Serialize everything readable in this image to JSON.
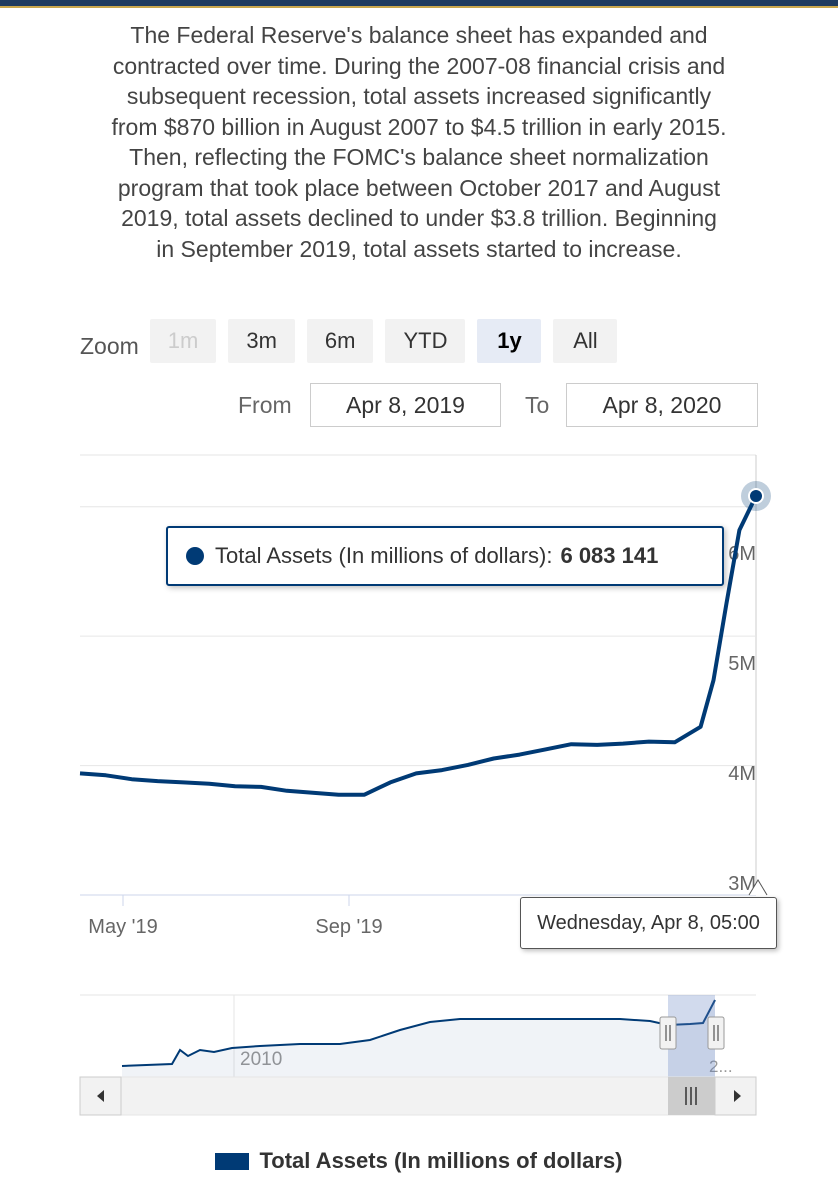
{
  "description": "The Federal Reserve's balance sheet has expanded and contracted over time. During the 2007-08 financial crisis and subsequent recession, total assets increased significantly from $870 billion in August 2007 to $4.5 trillion in early 2015. Then, reflecting the FOMC's balance sheet normalization program that took place between October 2017 and August 2019, total assets declined to under $3.8 trillion. Beginning in September 2019, total assets started to increase.",
  "zoom": {
    "label": "Zoom",
    "buttons": [
      {
        "label": "1m",
        "state": "disabled"
      },
      {
        "label": "3m",
        "state": "normal"
      },
      {
        "label": "6m",
        "state": "normal"
      },
      {
        "label": "YTD",
        "state": "normal"
      },
      {
        "label": "1y",
        "state": "active"
      },
      {
        "label": "All",
        "state": "normal"
      }
    ]
  },
  "range": {
    "from_label": "From",
    "from_value": "Apr 8, 2019",
    "to_label": "To",
    "to_value": "Apr 8, 2020"
  },
  "tooltip": {
    "series_label": "Total Assets (In millions of dollars):",
    "value": "6 083 141",
    "date": "Wednesday, Apr 8, 05:00"
  },
  "navigator": {
    "tick_labels": [
      "2010",
      "2..."
    ]
  },
  "colors": {
    "series": "#003a75",
    "grid": "#e6e6e6",
    "tooltip_border": "#003a75"
  },
  "chart_data": {
    "type": "line",
    "title": "",
    "xlabel": "",
    "ylabel": "",
    "x_ticks": [
      "May '19",
      "Sep '19"
    ],
    "y_ticks": [
      "3M",
      "4M",
      "5M",
      "6M"
    ],
    "ylim": [
      3000000,
      6400000
    ],
    "xlim": [
      "2019-04-08",
      "2020-04-08"
    ],
    "grid": true,
    "legend_position": "bottom",
    "series": [
      {
        "name": "Total Assets (In millions of dollars)",
        "x": [
          "2019-04-08",
          "2019-04-22",
          "2019-05-06",
          "2019-05-20",
          "2019-06-03",
          "2019-06-17",
          "2019-07-01",
          "2019-07-15",
          "2019-07-29",
          "2019-08-12",
          "2019-08-26",
          "2019-09-09",
          "2019-09-23",
          "2019-10-07",
          "2019-10-21",
          "2019-11-04",
          "2019-11-18",
          "2019-12-02",
          "2019-12-16",
          "2019-12-30",
          "2020-01-13",
          "2020-01-27",
          "2020-02-10",
          "2020-02-24",
          "2020-03-09",
          "2020-03-16",
          "2020-03-23",
          "2020-03-30",
          "2020-04-08"
        ],
        "y": [
          3940000,
          3925000,
          3895000,
          3880000,
          3870000,
          3860000,
          3840000,
          3835000,
          3805000,
          3790000,
          3775000,
          3775000,
          3870000,
          3940000,
          3965000,
          4005000,
          4055000,
          4085000,
          4125000,
          4165000,
          4160000,
          4170000,
          4185000,
          4180000,
          4300000,
          4660000,
          5250000,
          5820000,
          6083141
        ]
      }
    ]
  }
}
